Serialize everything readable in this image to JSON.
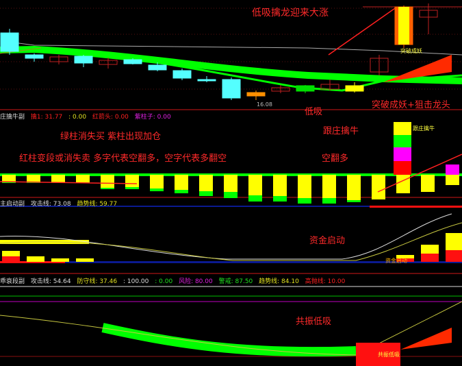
{
  "chart_data": [
    {
      "type": "candlestick",
      "panel": "main",
      "candles": [
        {
          "o": 112,
          "c": 85,
          "h": 118,
          "l": 80,
          "color": "cyan"
        },
        {
          "o": 80,
          "c": 75,
          "h": 82,
          "l": 70,
          "color": "cyan"
        },
        {
          "o": 70,
          "c": 77,
          "h": 80,
          "l": 66,
          "color": "red-hollow"
        },
        {
          "o": 78,
          "c": 68,
          "h": 80,
          "l": 62,
          "color": "cyan"
        },
        {
          "o": 66,
          "c": 72,
          "h": 76,
          "l": 60,
          "color": "red-hollow"
        },
        {
          "o": 73,
          "c": 67,
          "h": 75,
          "l": 66,
          "color": "cyan"
        },
        {
          "o": 65,
          "c": 58,
          "h": 69,
          "l": 56,
          "color": "cyan"
        },
        {
          "o": 57,
          "c": 46,
          "h": 60,
          "l": 43,
          "color": "cyan"
        },
        {
          "o": 44,
          "c": 44,
          "h": 49,
          "l": 40,
          "color": "cyan"
        },
        {
          "o": 44,
          "c": 17,
          "h": 47,
          "l": 14,
          "color": "cyan"
        },
        {
          "o": 20,
          "c": 25,
          "h": 28,
          "l": 14,
          "color": "orange"
        },
        {
          "o": 27,
          "c": 32,
          "h": 36,
          "l": 24,
          "color": "yellow-hollow"
        },
        {
          "o": 35,
          "c": 27,
          "h": 36,
          "l": 24,
          "color": "green"
        },
        {
          "o": 30,
          "c": 37,
          "h": 44,
          "l": 28,
          "color": "red-hollow"
        },
        {
          "o": 27,
          "c": 35,
          "h": 40,
          "l": 25,
          "color": "yellow"
        },
        {
          "o": 55,
          "c": 75,
          "h": 80,
          "l": 50,
          "color": "red-hollow"
        },
        {
          "o": 95,
          "c": 150,
          "h": 152,
          "l": 90,
          "color": "limit-up"
        },
        {
          "o": 135,
          "c": 145,
          "h": 155,
          "l": 110,
          "color": "red-hollow"
        }
      ]
    },
    {
      "type": "bar",
      "panel": "庄擒牛副",
      "values": [
        -12,
        -12,
        -12,
        -12,
        -21,
        -21,
        -24,
        -27,
        -31,
        -34,
        -39,
        -39,
        -42,
        -42,
        -40,
        -36,
        -27,
        -25,
        -15,
        -10
      ],
      "green_part": [
        1,
        1,
        1,
        1,
        2,
        3,
        4,
        5,
        7,
        9,
        9,
        8,
        8,
        8,
        3,
        0,
        0,
        0,
        0,
        0
      ],
      "magenta": [
        0,
        0,
        0,
        0,
        0,
        0,
        0,
        0,
        0,
        0,
        0,
        0,
        0,
        0,
        0,
        0,
        0,
        0,
        15,
        25
      ]
    },
    {
      "type": "bar",
      "panel": "主启动副",
      "yellow": [
        8,
        8,
        5,
        5,
        0,
        0,
        0,
        0,
        0,
        0,
        0,
        0,
        0,
        0,
        0,
        0,
        5,
        13,
        25,
        22
      ],
      "red": [
        8,
        0,
        0,
        0,
        0,
        0,
        0,
        0,
        0,
        0,
        0,
        0,
        0,
        0,
        0,
        0,
        5,
        12,
        17,
        30
      ]
    }
  ],
  "annotations": {
    "top": "低吸擒龙迎来大涨",
    "breakout": "突破成妖+狙击龙头",
    "low_buy": "低吸",
    "follow": "跟庄擒牛",
    "rule1": "绿柱消失买  紫柱出现加仓",
    "rule2": "红柱变段或消失卖   多字代表空翻多，空字代表多翻空",
    "flip": "空翻多",
    "capital": "资金启动",
    "resonance": "共振低吸",
    "small_breakout": "突破成妖",
    "small_low": "16.08",
    "small_follow": "跟庄擒牛",
    "small_capital": "资金启动",
    "small_resonance": "共振低吸"
  },
  "panel1": {
    "name": "庄擒牛副",
    "items": [
      {
        "label": "擒1: 31.77",
        "color": "#ff2020"
      },
      {
        "label": ": 0.00",
        "color": "#e0e020"
      },
      {
        "label": "红箭头: 0.00",
        "color": "#ff2020"
      },
      {
        "label": "紫柱子: 0.00",
        "color": "#e020e0"
      }
    ]
  },
  "panel2": {
    "name": "主启动副",
    "items": [
      {
        "label": "攻击线: 73.08",
        "color": "#dddddd"
      },
      {
        "label": "趋势线: 59.77",
        "color": "#e0e020"
      }
    ]
  },
  "panel3": {
    "name": "乖衰段副",
    "items": [
      {
        "label": "攻击线: 54.64",
        "color": "#dddddd"
      },
      {
        "label": "防守线: 37.46",
        "color": "#e0e020"
      },
      {
        "label": ": 100.00",
        "color": "#dddddd"
      },
      {
        "label": ": 0.00",
        "color": "#20e020"
      },
      {
        "label": "风险: 80.00",
        "color": "#e020e0"
      },
      {
        "label": "警戒: 87.50",
        "color": "#20e020"
      },
      {
        "label": "趋势线: 84.10",
        "color": "#e0e020"
      },
      {
        "label": "高抛线: 10.00",
        "color": "#ff2020"
      }
    ]
  },
  "colors": {
    "up": "#ff2020",
    "down": "#54ffff",
    "ma_band": "#00ff00",
    "yellow": "#ffff00",
    "magenta": "#ff00ff"
  }
}
